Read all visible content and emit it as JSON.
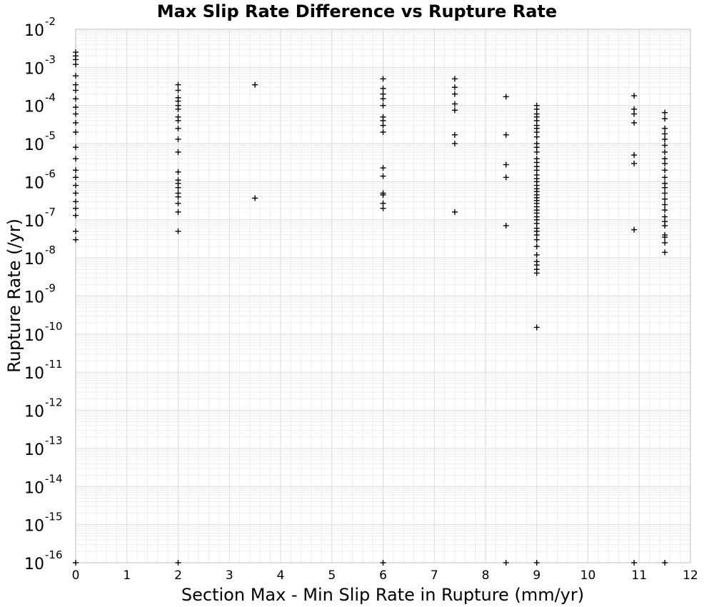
{
  "chart_data": {
    "type": "scatter",
    "title": "Max Slip Rate Difference vs Rupture Rate",
    "xlabel": "Section Max - Min Slip Rate in Rupture (mm/yr)",
    "ylabel": "Rupture Rate (/yr)",
    "xlim": [
      0,
      12
    ],
    "ylim": [
      1e-16,
      0.01
    ],
    "yscale": "log",
    "grid": true,
    "x_ticks": [
      "0",
      "1",
      "2",
      "3",
      "4",
      "5",
      "6",
      "7",
      "8",
      "9",
      "10",
      "11",
      "12"
    ],
    "y_ticks": [
      {
        "base": "10",
        "exp": "-2"
      },
      {
        "base": "10",
        "exp": "-3"
      },
      {
        "base": "10",
        "exp": "-4"
      },
      {
        "base": "10",
        "exp": "-5"
      },
      {
        "base": "10",
        "exp": "-6"
      },
      {
        "base": "10",
        "exp": "-7"
      },
      {
        "base": "10",
        "exp": "-8"
      },
      {
        "base": "10",
        "exp": "-9"
      },
      {
        "base": "10",
        "exp": "-10"
      },
      {
        "base": "10",
        "exp": "-11"
      },
      {
        "base": "10",
        "exp": "-12"
      },
      {
        "base": "10",
        "exp": "-13"
      },
      {
        "base": "10",
        "exp": "-14"
      },
      {
        "base": "10",
        "exp": "-15"
      },
      {
        "base": "10",
        "exp": "-16"
      }
    ],
    "marker": "+",
    "marker_color": "#000000",
    "series": [
      {
        "x": 0,
        "y": [
          0.0025,
          0.002,
          0.0016,
          0.0012,
          0.0006,
          0.00035,
          0.00025,
          0.00015,
          9e-05,
          6e-05,
          3.5e-05,
          2e-05,
          8e-06,
          4e-06,
          2e-06,
          1.3e-06,
          8e-07,
          5e-07,
          3e-07,
          2e-07,
          1.3e-07,
          5e-08,
          3e-08,
          1e-16
        ]
      },
      {
        "x": 2,
        "y": [
          0.00035,
          0.00025,
          0.00016,
          0.00013,
          0.0001,
          8e-05,
          5e-05,
          4e-05,
          2.5e-05,
          1.3e-05,
          6e-06,
          1.8e-06,
          1.1e-06,
          9e-07,
          7e-07,
          5e-07,
          4e-07,
          2.7e-07,
          1.6e-07,
          5e-08,
          1e-16
        ]
      },
      {
        "x": 3.5,
        "y": [
          0.00035,
          3.7e-07
        ]
      },
      {
        "x": 6,
        "y": [
          0.0005,
          0.00028,
          0.0002,
          0.00015,
          0.0001,
          5e-05,
          4e-05,
          3e-05,
          2e-05,
          2.3e-06,
          1.4e-06,
          5e-07,
          4.5e-07,
          2.7e-07,
          2e-07,
          1e-16
        ]
      },
      {
        "x": 7.4,
        "y": [
          0.0005,
          0.0003,
          0.0002,
          0.00011,
          7.5e-05,
          1.7e-05,
          1e-05,
          1.6e-07
        ]
      },
      {
        "x": 8.4,
        "y": [
          0.00017,
          1.7e-05,
          2.8e-06,
          1.3e-06,
          7e-08,
          1e-16
        ]
      },
      {
        "x": 9,
        "y": [
          0.0001,
          8e-05,
          6e-05,
          5e-05,
          4e-05,
          3e-05,
          2.5e-05,
          2e-05,
          1.5e-05,
          1e-05,
          8e-06,
          6e-06,
          4e-06,
          3.2e-06,
          2.5e-06,
          2e-06,
          1.5e-06,
          1.2e-06,
          1e-06,
          8e-07,
          6.5e-07,
          5.5e-07,
          4.5e-07,
          3.8e-07,
          3.2e-07,
          2.7e-07,
          2.2e-07,
          1.8e-07,
          1.5e-07,
          1.2e-07,
          1e-07,
          8e-08,
          6e-08,
          5e-08,
          4e-08,
          3e-08,
          2e-08,
          1.2e-08,
          8e-09,
          6.5e-09,
          5e-09,
          4e-09,
          1.5e-10,
          1e-16
        ]
      },
      {
        "x": 10.9,
        "y": [
          0.00018,
          8e-05,
          6e-05,
          3.5e-05,
          5e-06,
          3e-06,
          5.5e-08,
          1e-16
        ]
      },
      {
        "x": 11.5,
        "y": [
          6.5e-05,
          4.5e-05,
          2.5e-05,
          1.8e-05,
          1.3e-05,
          9e-06,
          6e-06,
          4e-06,
          3e-06,
          2e-06,
          1.3e-06,
          9e-07,
          7e-07,
          5e-07,
          3.5e-07,
          2.5e-07,
          1.8e-07,
          1.2e-07,
          9e-08,
          7e-08,
          4e-08,
          3.5e-08,
          2.5e-08,
          1.4e-08,
          1e-16
        ]
      }
    ]
  }
}
